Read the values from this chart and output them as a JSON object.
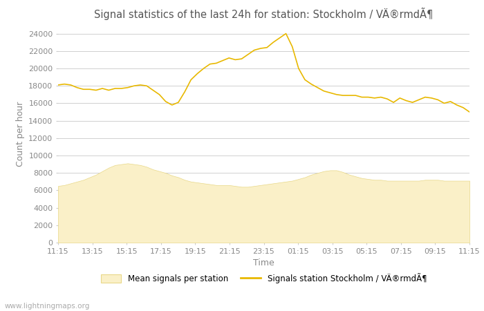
{
  "title": "Signal statistics of the last 24h for station: Stockholm / VÄ®rmdÃ¶",
  "xlabel": "Time",
  "ylabel": "Count per hour",
  "watermark": "www.lightningmaps.org",
  "legend_label1": "Mean signals per station",
  "legend_label2": "Signals station Stockholm / VÄ®rmdÃ¶",
  "x_ticks": [
    "11:15",
    "13:15",
    "15:15",
    "17:15",
    "19:15",
    "21:15",
    "23:15",
    "01:15",
    "03:15",
    "05:15",
    "07:15",
    "09:15",
    "11:15"
  ],
  "ylim": [
    0,
    25000
  ],
  "y_ticks": [
    0,
    2000,
    4000,
    6000,
    8000,
    10000,
    12000,
    14000,
    16000,
    18000,
    20000,
    22000,
    24000
  ],
  "line_color": "#E8B800",
  "fill_color": "#FAF0C8",
  "fill_edge_color": "#E8D888",
  "background_color": "#ffffff",
  "grid_color": "#d0d0d0",
  "line_values": [
    18100,
    18200,
    18100,
    17800,
    17600,
    17600,
    17500,
    17700,
    17500,
    17700,
    17700,
    17800,
    18000,
    18100,
    18000,
    17500,
    17000,
    16200,
    15800,
    16100,
    17300,
    18700,
    19400,
    20000,
    20500,
    20600,
    20900,
    21200,
    21000,
    21100,
    21600,
    22100,
    22300,
    22400,
    23000,
    23500,
    24000,
    22500,
    20000,
    18700,
    18200,
    17800,
    17400,
    17200,
    17000,
    16900,
    16900,
    16900,
    16700,
    16700,
    16600,
    16700,
    16500,
    16100,
    16600,
    16300,
    16100,
    16400,
    16700,
    16600,
    16400,
    16000,
    16200,
    15800,
    15500,
    15000
  ],
  "fill_values": [
    6500,
    6600,
    6800,
    7000,
    7200,
    7500,
    7800,
    8200,
    8600,
    8900,
    9000,
    9100,
    9000,
    8900,
    8700,
    8400,
    8200,
    8000,
    7700,
    7500,
    7200,
    7000,
    6900,
    6800,
    6700,
    6600,
    6600,
    6600,
    6500,
    6400,
    6400,
    6500,
    6600,
    6700,
    6800,
    6900,
    7000,
    7100,
    7300,
    7500,
    7800,
    8000,
    8200,
    8300,
    8300,
    8100,
    7800,
    7600,
    7400,
    7300,
    7200,
    7200,
    7100,
    7100,
    7100,
    7100,
    7100,
    7100,
    7200,
    7200,
    7200,
    7100,
    7100,
    7100,
    7100,
    7100
  ]
}
